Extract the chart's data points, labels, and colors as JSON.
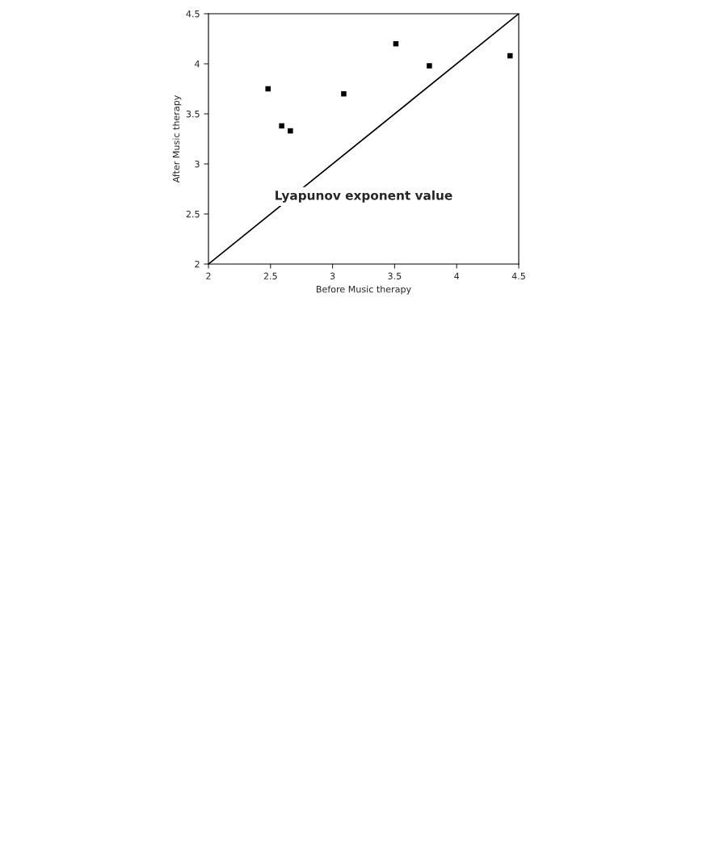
{
  "chart_data": {
    "type": "scatter",
    "xlabel": "Before Music therapy",
    "ylabel": "After Music therapy",
    "annotations": [
      "Lyapunov exponent value"
    ],
    "xlim": [
      2,
      4.5
    ],
    "ylim": [
      2,
      4.5
    ],
    "xticks": [
      2,
      2.5,
      3,
      3.5,
      4,
      4.5
    ],
    "yticks": [
      2,
      2.5,
      3,
      3.5,
      4,
      4.5
    ],
    "series": [
      {
        "color": "#000000",
        "marker": "square",
        "x": [
          2.48,
          2.59,
          2.66,
          3.09,
          3.51,
          3.78,
          4.43
        ],
        "values": [
          3.75,
          3.38,
          3.33,
          3.7,
          4.2,
          3.98,
          4.08
        ]
      },
      {
        "type": "line",
        "color": "#000000",
        "x": [
          2,
          4.5
        ],
        "values": [
          2,
          4.5
        ]
      }
    ]
  }
}
